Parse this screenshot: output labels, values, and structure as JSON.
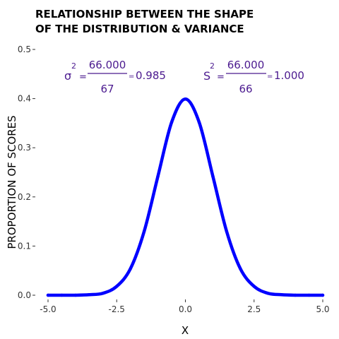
{
  "chart_data": {
    "type": "line",
    "title_lines": [
      "RELATIONSHIP BETWEEN THE SHAPE",
      "OF THE DISTRIBUTION & VARIANCE"
    ],
    "xlabel": "X",
    "ylabel": "PROPORTION OF SCORES",
    "xlim": [
      -5,
      5
    ],
    "ylim": [
      0,
      0.5
    ],
    "x_ticks": [
      "-5.0",
      "-2.5",
      "0.0",
      "2.5",
      "5.0"
    ],
    "y_ticks": [
      "0.0",
      "0.1",
      "0.2",
      "0.3",
      "0.4",
      "0.5"
    ],
    "grid": false,
    "line_color": "#0000ff",
    "formula_color": "#4b1a8f",
    "series": [
      {
        "x": [
          -5.0,
          -4.5,
          -4.0,
          -3.5,
          -3.0,
          -2.5,
          -2.0,
          -1.5,
          -1.0,
          -0.5,
          0.0,
          0.5,
          1.0,
          1.5,
          2.0,
          2.5,
          3.0,
          3.5,
          4.0,
          4.5,
          5.0
        ],
        "y": [
          0.0,
          0.0,
          0.0,
          0.001,
          0.004,
          0.018,
          0.054,
          0.13,
          0.242,
          0.352,
          0.399,
          0.352,
          0.242,
          0.13,
          0.054,
          0.018,
          0.004,
          0.001,
          0.0,
          0.0,
          0.0
        ]
      }
    ],
    "annotations": [
      {
        "symbol": "σ",
        "exponent": "2",
        "numerator": "66.000",
        "denominator": "67",
        "result": "0.985"
      },
      {
        "symbol": "S",
        "exponent": "2",
        "numerator": "66.000",
        "denominator": "66",
        "result": "1.000"
      }
    ]
  }
}
